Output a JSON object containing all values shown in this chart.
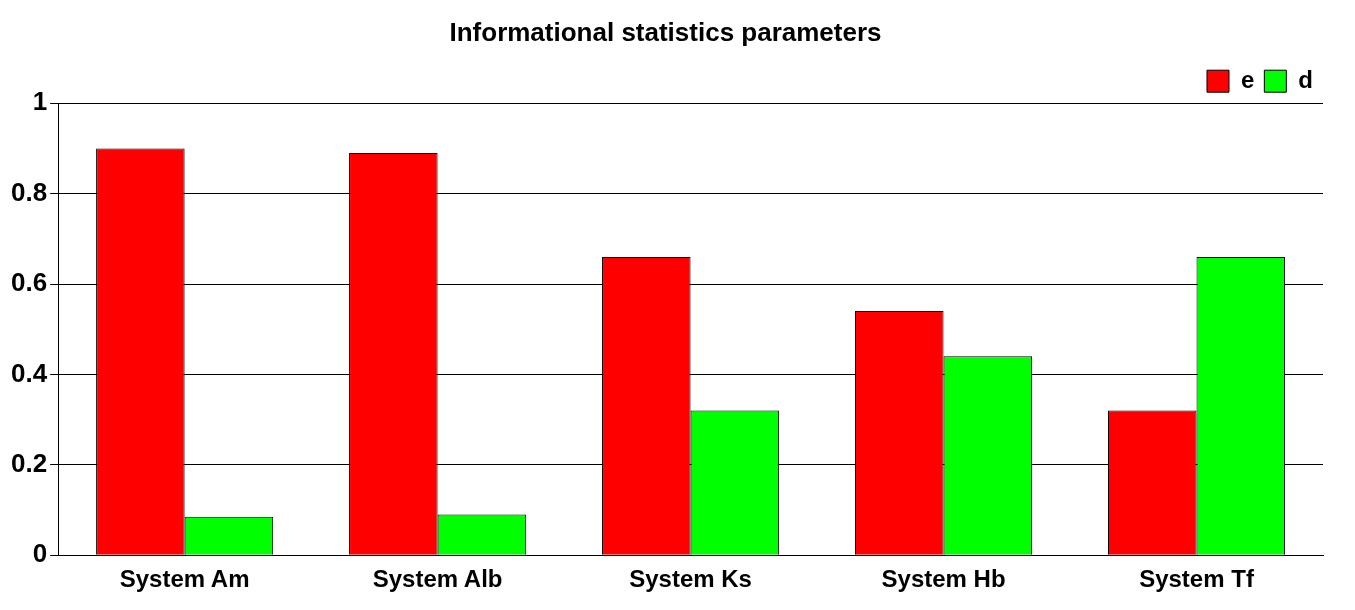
{
  "chart_data": {
    "type": "bar",
    "title": "Informational statistics parameters",
    "categories": [
      "System Am",
      "System Alb",
      "System Ks",
      "System Hb",
      "System Tf"
    ],
    "series": [
      {
        "name": "e",
        "color": "#ff0000",
        "values": [
          0.9,
          0.89,
          0.66,
          0.54,
          0.32
        ]
      },
      {
        "name": "d",
        "color": "#00ff00",
        "values": [
          0.085,
          0.09,
          0.32,
          0.44,
          0.66
        ]
      }
    ],
    "ylim": [
      0,
      1
    ],
    "yticks": [
      0,
      0.2,
      0.4,
      0.6,
      0.8,
      1
    ],
    "grid": "y",
    "legend": "top right"
  }
}
